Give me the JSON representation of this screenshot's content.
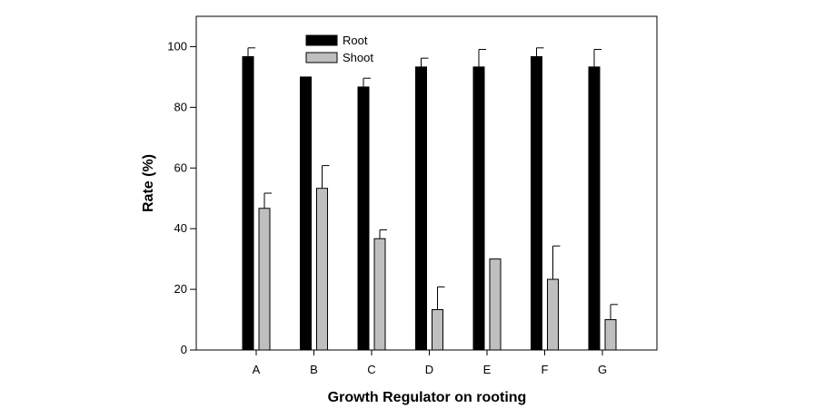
{
  "chart_data": {
    "type": "bar",
    "title": "",
    "xlabel": "Growth Regulator on rooting",
    "ylabel": "Rate (%)",
    "categories": [
      "A",
      "B",
      "C",
      "D",
      "E",
      "F",
      "G"
    ],
    "ylim": [
      0,
      110
    ],
    "yticks": [
      0,
      20,
      40,
      60,
      80,
      100
    ],
    "grid": false,
    "legend_position": "top-left",
    "series": [
      {
        "name": "Root",
        "color": "#000000",
        "values": [
          96.7,
          90.0,
          86.7,
          93.3,
          93.3,
          96.7,
          93.3
        ],
        "errors": [
          2.9,
          0,
          2.9,
          2.9,
          5.8,
          2.9,
          5.8
        ]
      },
      {
        "name": "Shoot",
        "color": "#bfbfbf",
        "values": [
          46.7,
          53.3,
          36.7,
          13.3,
          30.0,
          23.3,
          10.0
        ],
        "errors": [
          5.0,
          7.5,
          2.9,
          7.5,
          0,
          11.0,
          5.0
        ]
      }
    ]
  }
}
